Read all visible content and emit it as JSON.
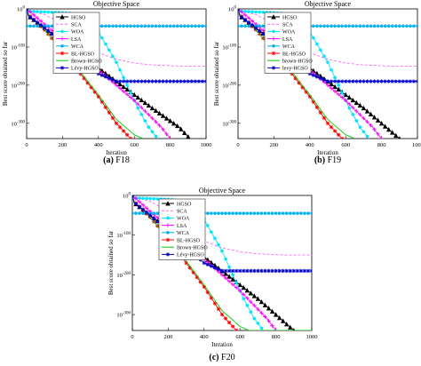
{
  "figure": {
    "panels": [
      {
        "caption": "(a) F18",
        "title": "Objective Space",
        "xlabel": "Iteration",
        "ylabel": "Best score obtained so far",
        "x_ticks": [
          "0",
          "200",
          "400",
          "600",
          "800",
          "1000"
        ],
        "y_ticks": [
          "10^0",
          "10^-100",
          "10^-200",
          "10^-300"
        ],
        "legend": [
          "HGSO",
          "SCA",
          "WOA",
          "LSA",
          "WCA",
          "BL-HGSO",
          "Brown-HGSO",
          "Lévy-HGSO"
        ]
      },
      {
        "caption": "(b) F19",
        "title": "Objective Space",
        "xlabel": "Iteration",
        "ylabel": "Best score obtained so far",
        "x_ticks": [
          "0",
          "200",
          "400",
          "600",
          "800",
          "100("
        ],
        "y_ticks": [
          "10^0",
          "10^-100",
          "10^-200",
          "10^-300"
        ],
        "legend": [
          "HGSO",
          "SCA",
          "WOA",
          "LSA",
          "WCA",
          "BL-HGSO",
          "brown-HGSO",
          "levy-HGSO"
        ]
      },
      {
        "caption": "(c) F20",
        "title": "Objective Space",
        "xlabel": "Iteration",
        "ylabel": "Best score obtained so far",
        "x_ticks": [
          "0",
          "200",
          "400",
          "600",
          "800",
          "1000"
        ],
        "y_ticks": [
          "10^0",
          "10^-100",
          "10^-200",
          "10^-300"
        ],
        "legend": [
          "HGSO",
          "SCA",
          "WOA",
          "LSA",
          "WCA",
          "BL-HGSO",
          "Brown-HGSO",
          "Lévy-HGSO"
        ]
      }
    ]
  },
  "chart_data": [
    {
      "type": "line",
      "title": "Objective Space",
      "xlabel": "Iteration",
      "ylabel": "Best score obtained so far",
      "xlim": [
        0,
        1000
      ],
      "ylim_log10": [
        -340,
        0
      ],
      "log_scale_y": true,
      "grid": false,
      "legend_position": "top-left",
      "series": [
        {
          "name": "HGSO",
          "color": "#000000",
          "marker": "triangle",
          "dash": "solid",
          "x": [
            0,
            10,
            100,
            300,
            500,
            700,
            850,
            910
          ],
          "y_log10": [
            0,
            -18,
            -50,
            -120,
            -190,
            -260,
            -310,
            -340
          ]
        },
        {
          "name": "SCA",
          "color": "#ff66ff",
          "marker": "none",
          "dash": "dashed",
          "x": [
            0,
            10,
            100,
            200,
            300,
            400,
            500,
            600,
            700,
            850,
            1000
          ],
          "y_log10": [
            0,
            -4,
            -15,
            -40,
            -85,
            -115,
            -132,
            -142,
            -147,
            -150,
            -150
          ]
        },
        {
          "name": "WOA",
          "color": "#00e5ff",
          "marker": "circle",
          "dash": "solid",
          "x": [
            0,
            100,
            200,
            300,
            400,
            500,
            560,
            620,
            680,
            730
          ],
          "y_log10": [
            -6,
            -8,
            -10,
            -14,
            -60,
            -140,
            -200,
            -260,
            -310,
            -340
          ]
        },
        {
          "name": "LSA",
          "color": "#ff00ff",
          "marker": "plus",
          "dash": "solid",
          "x": [
            0,
            100,
            200,
            400,
            600,
            750,
            800
          ],
          "y_log10": [
            0,
            -40,
            -80,
            -160,
            -240,
            -310,
            -340
          ]
        },
        {
          "name": "WCA",
          "color": "#00b0f0",
          "marker": "circle",
          "dash": "solid",
          "x": [
            0,
            100,
            300,
            500,
            700,
            900,
            1000
          ],
          "y_log10": [
            -45,
            -45,
            -45,
            -45,
            -45,
            -45,
            -45
          ]
        },
        {
          "name": "BL-HGSO",
          "color": "#ff0000",
          "marker": "star",
          "dash": "solid",
          "x": [
            0,
            10,
            100,
            200,
            300,
            400,
            500,
            580
          ],
          "y_log10": [
            0,
            -15,
            -55,
            -110,
            -170,
            -230,
            -300,
            -340
          ]
        },
        {
          "name": "Brown-HGSO",
          "color": "#00cc00",
          "marker": "none",
          "dash": "solid",
          "x": [
            0,
            10,
            100,
            200,
            300,
            400,
            500,
            600,
            650
          ],
          "y_log10": [
            0,
            -15,
            -55,
            -110,
            -165,
            -225,
            -290,
            -330,
            -340
          ]
        },
        {
          "name": "Lévy-HGSO",
          "color": "#0000cc",
          "marker": "star",
          "dash": "solid",
          "x": [
            0,
            10,
            100,
            200,
            300,
            400,
            500,
            600,
            1000
          ],
          "y_log10": [
            0,
            -18,
            -50,
            -90,
            -130,
            -170,
            -190,
            -190,
            -190
          ]
        }
      ]
    },
    {
      "type": "line",
      "title": "Objective Space",
      "xlabel": "Iteration",
      "ylabel": "Best score obtained so far",
      "xlim": [
        0,
        1000
      ],
      "ylim_log10": [
        -340,
        0
      ],
      "log_scale_y": true,
      "grid": false,
      "legend_position": "top-left",
      "series": [
        {
          "name": "HGSO",
          "color": "#000000",
          "marker": "triangle",
          "dash": "solid",
          "x": [
            0,
            10,
            100,
            300,
            500,
            700,
            850,
            900
          ],
          "y_log10": [
            0,
            -18,
            -50,
            -120,
            -190,
            -260,
            -320,
            -340
          ]
        },
        {
          "name": "SCA",
          "color": "#ff66ff",
          "marker": "none",
          "dash": "dashed",
          "x": [
            0,
            10,
            100,
            200,
            300,
            400,
            500,
            600,
            700,
            850,
            1000
          ],
          "y_log10": [
            0,
            -4,
            -15,
            -40,
            -85,
            -115,
            -132,
            -142,
            -147,
            -150,
            -150
          ]
        },
        {
          "name": "WOA",
          "color": "#00e5ff",
          "marker": "circle",
          "dash": "solid",
          "x": [
            0,
            100,
            200,
            300,
            400,
            500,
            560,
            620,
            680,
            730
          ],
          "y_log10": [
            -6,
            -8,
            -10,
            -14,
            -60,
            -140,
            -200,
            -260,
            -310,
            -340
          ]
        },
        {
          "name": "LSA",
          "color": "#ff00ff",
          "marker": "plus",
          "dash": "solid",
          "x": [
            0,
            100,
            200,
            400,
            600,
            750,
            800
          ],
          "y_log10": [
            0,
            -40,
            -80,
            -160,
            -240,
            -310,
            -340
          ]
        },
        {
          "name": "WCA",
          "color": "#00b0f0",
          "marker": "circle",
          "dash": "solid",
          "x": [
            0,
            100,
            300,
            500,
            700,
            900,
            1000
          ],
          "y_log10": [
            -45,
            -45,
            -45,
            -45,
            -45,
            -45,
            -45
          ]
        },
        {
          "name": "BL-HGSO",
          "color": "#ff0000",
          "marker": "star",
          "dash": "solid",
          "x": [
            0,
            10,
            100,
            200,
            300,
            400,
            500,
            580
          ],
          "y_log10": [
            0,
            -15,
            -55,
            -110,
            -170,
            -230,
            -300,
            -340
          ]
        },
        {
          "name": "brown-HGSO",
          "color": "#00cc00",
          "marker": "none",
          "dash": "solid",
          "x": [
            0,
            10,
            100,
            200,
            300,
            400,
            500,
            600,
            650
          ],
          "y_log10": [
            0,
            -15,
            -55,
            -110,
            -165,
            -225,
            -290,
            -330,
            -340
          ]
        },
        {
          "name": "levy-HGSO",
          "color": "#0000cc",
          "marker": "star",
          "dash": "solid",
          "x": [
            0,
            10,
            100,
            200,
            300,
            400,
            500,
            600,
            1000
          ],
          "y_log10": [
            0,
            -18,
            -50,
            -90,
            -130,
            -170,
            -190,
            -190,
            -190
          ]
        }
      ]
    },
    {
      "type": "line",
      "title": "Objective Space",
      "xlabel": "Iteration",
      "ylabel": "Best score obtained so far",
      "xlim": [
        0,
        1000
      ],
      "ylim_log10": [
        -340,
        0
      ],
      "log_scale_y": true,
      "grid": false,
      "legend_position": "top-left",
      "series": [
        {
          "name": "HGSO",
          "color": "#000000",
          "marker": "triangle",
          "dash": "solid",
          "x": [
            0,
            10,
            100,
            300,
            500,
            700,
            850,
            900
          ],
          "y_log10": [
            0,
            -18,
            -50,
            -120,
            -190,
            -260,
            -320,
            -340
          ]
        },
        {
          "name": "SCA",
          "color": "#ff66ff",
          "marker": "none",
          "dash": "dashed",
          "x": [
            0,
            10,
            100,
            200,
            300,
            400,
            500,
            600,
            700,
            850,
            1000
          ],
          "y_log10": [
            0,
            -4,
            -15,
            -40,
            -85,
            -115,
            -132,
            -142,
            -147,
            -150,
            -150
          ]
        },
        {
          "name": "WOA",
          "color": "#00e5ff",
          "marker": "circle",
          "dash": "solid",
          "x": [
            0,
            100,
            200,
            300,
            400,
            500,
            560,
            620,
            680,
            730
          ],
          "y_log10": [
            -6,
            -8,
            -10,
            -14,
            -60,
            -140,
            -200,
            -260,
            -310,
            -340
          ]
        },
        {
          "name": "LSA",
          "color": "#ff00ff",
          "marker": "plus",
          "dash": "solid",
          "x": [
            0,
            100,
            200,
            400,
            600,
            750,
            800
          ],
          "y_log10": [
            0,
            -40,
            -80,
            -160,
            -240,
            -310,
            -340
          ]
        },
        {
          "name": "WCA",
          "color": "#00b0f0",
          "marker": "circle",
          "dash": "solid",
          "x": [
            0,
            100,
            300,
            500,
            700,
            900,
            1000
          ],
          "y_log10": [
            -45,
            -45,
            -45,
            -45,
            -45,
            -45,
            -45
          ]
        },
        {
          "name": "BL-HGSO",
          "color": "#ff0000",
          "marker": "star",
          "dash": "solid",
          "x": [
            0,
            10,
            100,
            200,
            300,
            400,
            500,
            580
          ],
          "y_log10": [
            0,
            -15,
            -55,
            -110,
            -170,
            -230,
            -300,
            -340
          ]
        },
        {
          "name": "Brown-HGSO",
          "color": "#00cc00",
          "marker": "none",
          "dash": "solid",
          "x": [
            0,
            10,
            100,
            200,
            300,
            400,
            500,
            600,
            650,
            1000
          ],
          "y_log10": [
            0,
            -15,
            -55,
            -110,
            -165,
            -225,
            -290,
            -330,
            -340,
            -340
          ]
        },
        {
          "name": "Lévy-HGSO",
          "color": "#0000cc",
          "marker": "star",
          "dash": "solid",
          "x": [
            0,
            10,
            100,
            200,
            300,
            400,
            500,
            600,
            1000
          ],
          "y_log10": [
            0,
            -18,
            -50,
            -90,
            -130,
            -170,
            -190,
            -190,
            -190
          ]
        }
      ]
    }
  ]
}
